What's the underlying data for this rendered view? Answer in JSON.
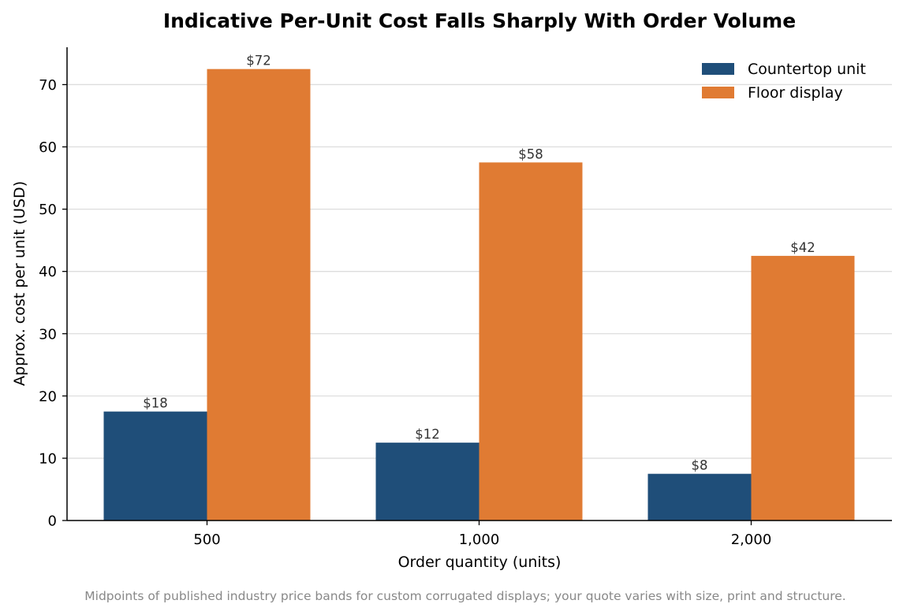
{
  "chart_data": {
    "type": "bar",
    "title": "Indicative Per-Unit Cost Falls Sharply With Order Volume",
    "xlabel": "Order quantity (units)",
    "ylabel": "Approx. cost per unit (USD)",
    "categories": [
      "500",
      "1,000",
      "2,000"
    ],
    "series": [
      {
        "name": "Countertop unit",
        "color": "#1f4e79",
        "values": [
          17.5,
          12.5,
          7.5
        ],
        "labels": [
          "$18",
          "$12",
          "$8"
        ]
      },
      {
        "name": "Floor display",
        "color": "#e07b33",
        "values": [
          72.5,
          57.5,
          42.5
        ],
        "labels": [
          "$72",
          "$58",
          "$42"
        ]
      }
    ],
    "ylim": [
      0,
      76
    ],
    "yticks": [
      0,
      10,
      20,
      30,
      40,
      50,
      60,
      70
    ],
    "grid": "y",
    "legend_position": "top-right",
    "footnote": "Midpoints of published industry price bands for custom corrugated displays; your quote varies with size, print and structure."
  }
}
